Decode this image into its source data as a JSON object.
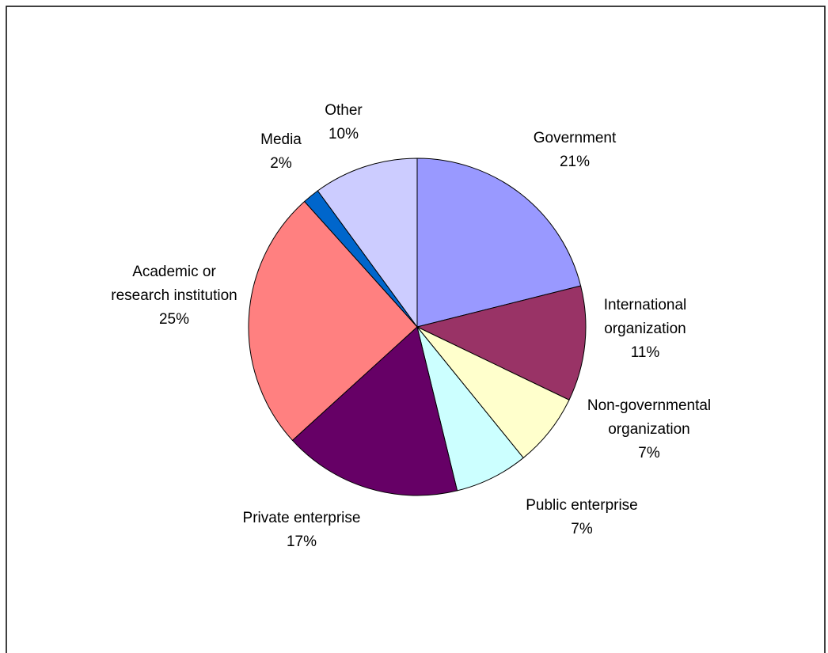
{
  "chart_data": {
    "type": "pie",
    "title": "",
    "start_angle_deg": 0,
    "direction": "clockwise",
    "slices": [
      {
        "label_lines": [
          "Government"
        ],
        "pct_label": "21%",
        "value": 21,
        "color": "#9999ff"
      },
      {
        "label_lines": [
          "International",
          "organization"
        ],
        "pct_label": "11%",
        "value": 11,
        "color": "#993366"
      },
      {
        "label_lines": [
          "Non-governmental",
          "organization"
        ],
        "pct_label": "7%",
        "value": 7,
        "color": "#ffffcc"
      },
      {
        "label_lines": [
          "Public enterprise"
        ],
        "pct_label": "7%",
        "value": 7,
        "color": "#ccffff"
      },
      {
        "label_lines": [
          "Private enterprise"
        ],
        "pct_label": "17%",
        "value": 17,
        "color": "#660066"
      },
      {
        "label_lines": [
          "Academic or",
          "research institution"
        ],
        "pct_label": "25%",
        "value": 25,
        "color": "#ff8080"
      },
      {
        "label_lines": [
          "Media"
        ],
        "pct_label": "2%",
        "value": 1.6,
        "color": "#0066cc"
      },
      {
        "label_lines": [
          "Other"
        ],
        "pct_label": "10%",
        "value": 10,
        "color": "#ccccff"
      }
    ]
  }
}
